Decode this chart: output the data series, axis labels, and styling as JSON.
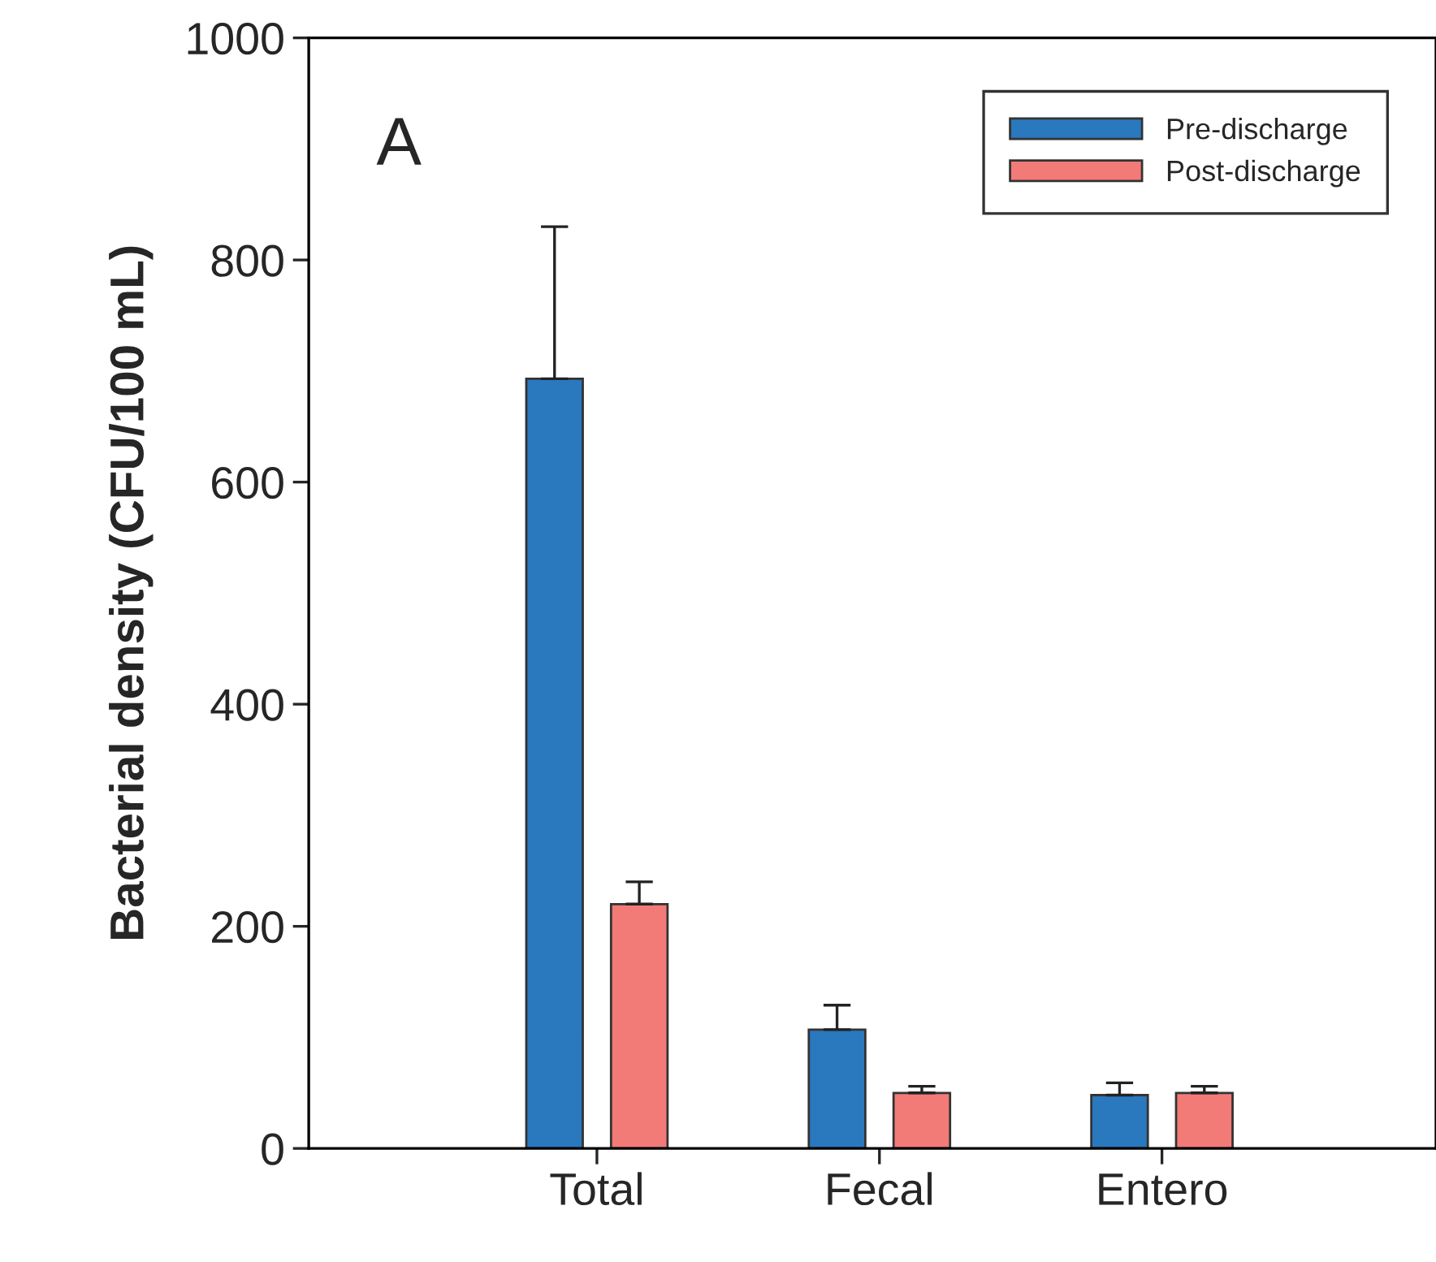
{
  "chart_data": {
    "type": "bar",
    "ylabel": "Bacterial density (CFU/100 mL)",
    "categories": [
      "Total",
      "Fecal",
      "Entero"
    ],
    "series": [
      {
        "name": "Pre-discharge",
        "color": "#2a78be",
        "values": [
          693,
          107,
          48
        ],
        "errors": [
          [
            693,
            830
          ],
          [
            107,
            129
          ],
          [
            48,
            59
          ]
        ]
      },
      {
        "name": "Post-discharge",
        "color": "#f27b78",
        "values": [
          220,
          50,
          50
        ],
        "errors": [
          [
            220,
            240
          ],
          [
            50,
            56
          ],
          [
            50,
            56
          ]
        ]
      }
    ],
    "ylim": [
      0,
      1000
    ],
    "yticks": [
      0,
      200,
      400,
      600,
      800,
      1000
    ],
    "grid": false,
    "legend": "top right",
    "annotations": [
      "A"
    ]
  }
}
